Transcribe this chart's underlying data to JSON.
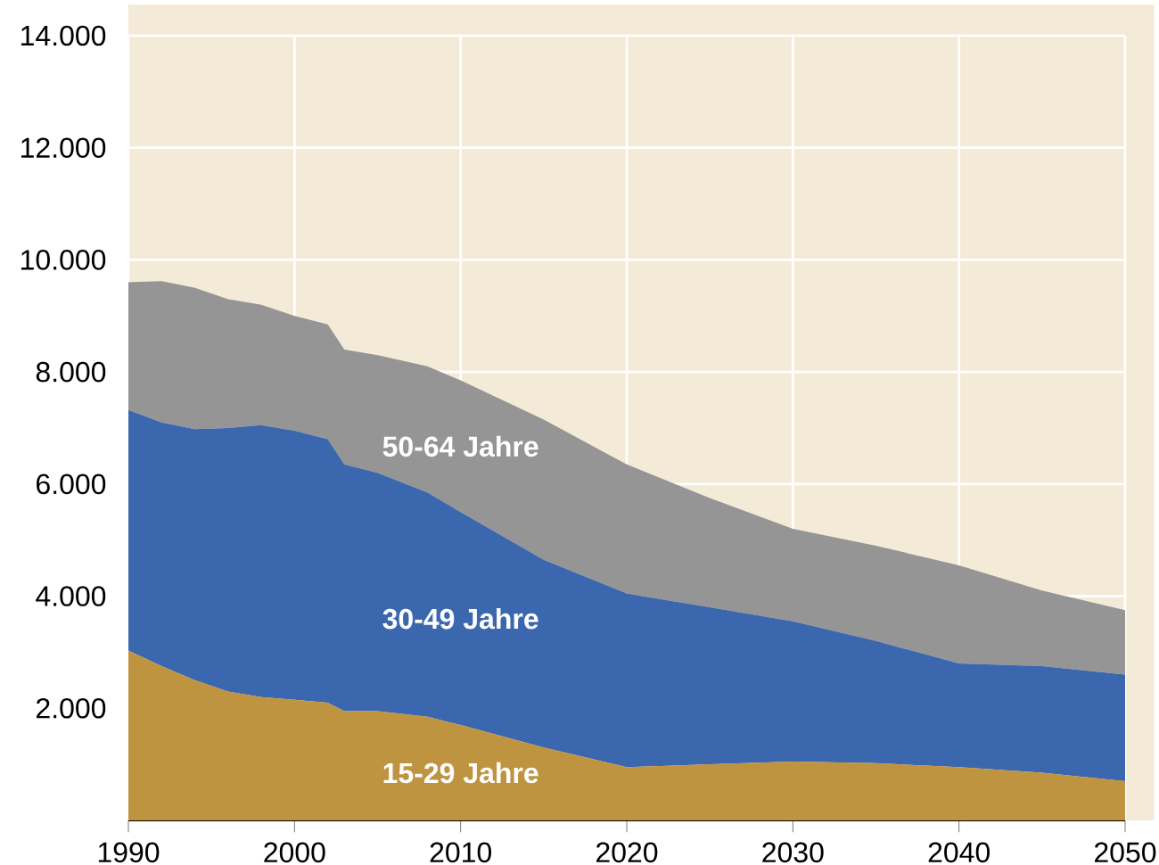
{
  "chart_data": {
    "type": "area",
    "stacked": true,
    "x": [
      1990,
      1992,
      1994,
      1996,
      1998,
      2000,
      2002,
      2003,
      2005,
      2008,
      2010,
      2015,
      2020,
      2025,
      2030,
      2035,
      2040,
      2045,
      2050
    ],
    "series": [
      {
        "name": "15-29 Jahre",
        "color": "#bf9441",
        "values": [
          3030,
          2750,
          2500,
          2300,
          2200,
          2150,
          2100,
          1950,
          1950,
          1850,
          1700,
          1300,
          950,
          1000,
          1050,
          1020,
          950,
          850,
          700
        ]
      },
      {
        "name": "30-49 Jahre",
        "color": "#3b67ae",
        "values": [
          4290,
          4350,
          4480,
          4700,
          4850,
          4800,
          4700,
          4400,
          4250,
          4000,
          3800,
          3350,
          3100,
          2800,
          2500,
          2180,
          1850,
          1900,
          1900
        ]
      },
      {
        "name": "50-64 Jahre",
        "color": "#959595",
        "values": [
          2280,
          2520,
          2520,
          2300,
          2150,
          2050,
          2050,
          2050,
          2100,
          2250,
          2350,
          2500,
          2300,
          1950,
          1650,
          1700,
          1750,
          1350,
          1150
        ]
      }
    ],
    "xlim": [
      1990,
      2050
    ],
    "xticks": [
      1990,
      2000,
      2010,
      2020,
      2030,
      2040,
      2050
    ],
    "ylim": [
      0,
      14000
    ],
    "yticks": [
      {
        "value": 2000,
        "label": "2.000"
      },
      {
        "value": 4000,
        "label": "4.000"
      },
      {
        "value": 6000,
        "label": "6.000"
      },
      {
        "value": 8000,
        "label": "8.000"
      },
      {
        "value": 10000,
        "label": "10.000"
      },
      {
        "value": 12000,
        "label": "12.000"
      },
      {
        "value": 14000,
        "label": "14.000"
      }
    ],
    "grid": true
  }
}
